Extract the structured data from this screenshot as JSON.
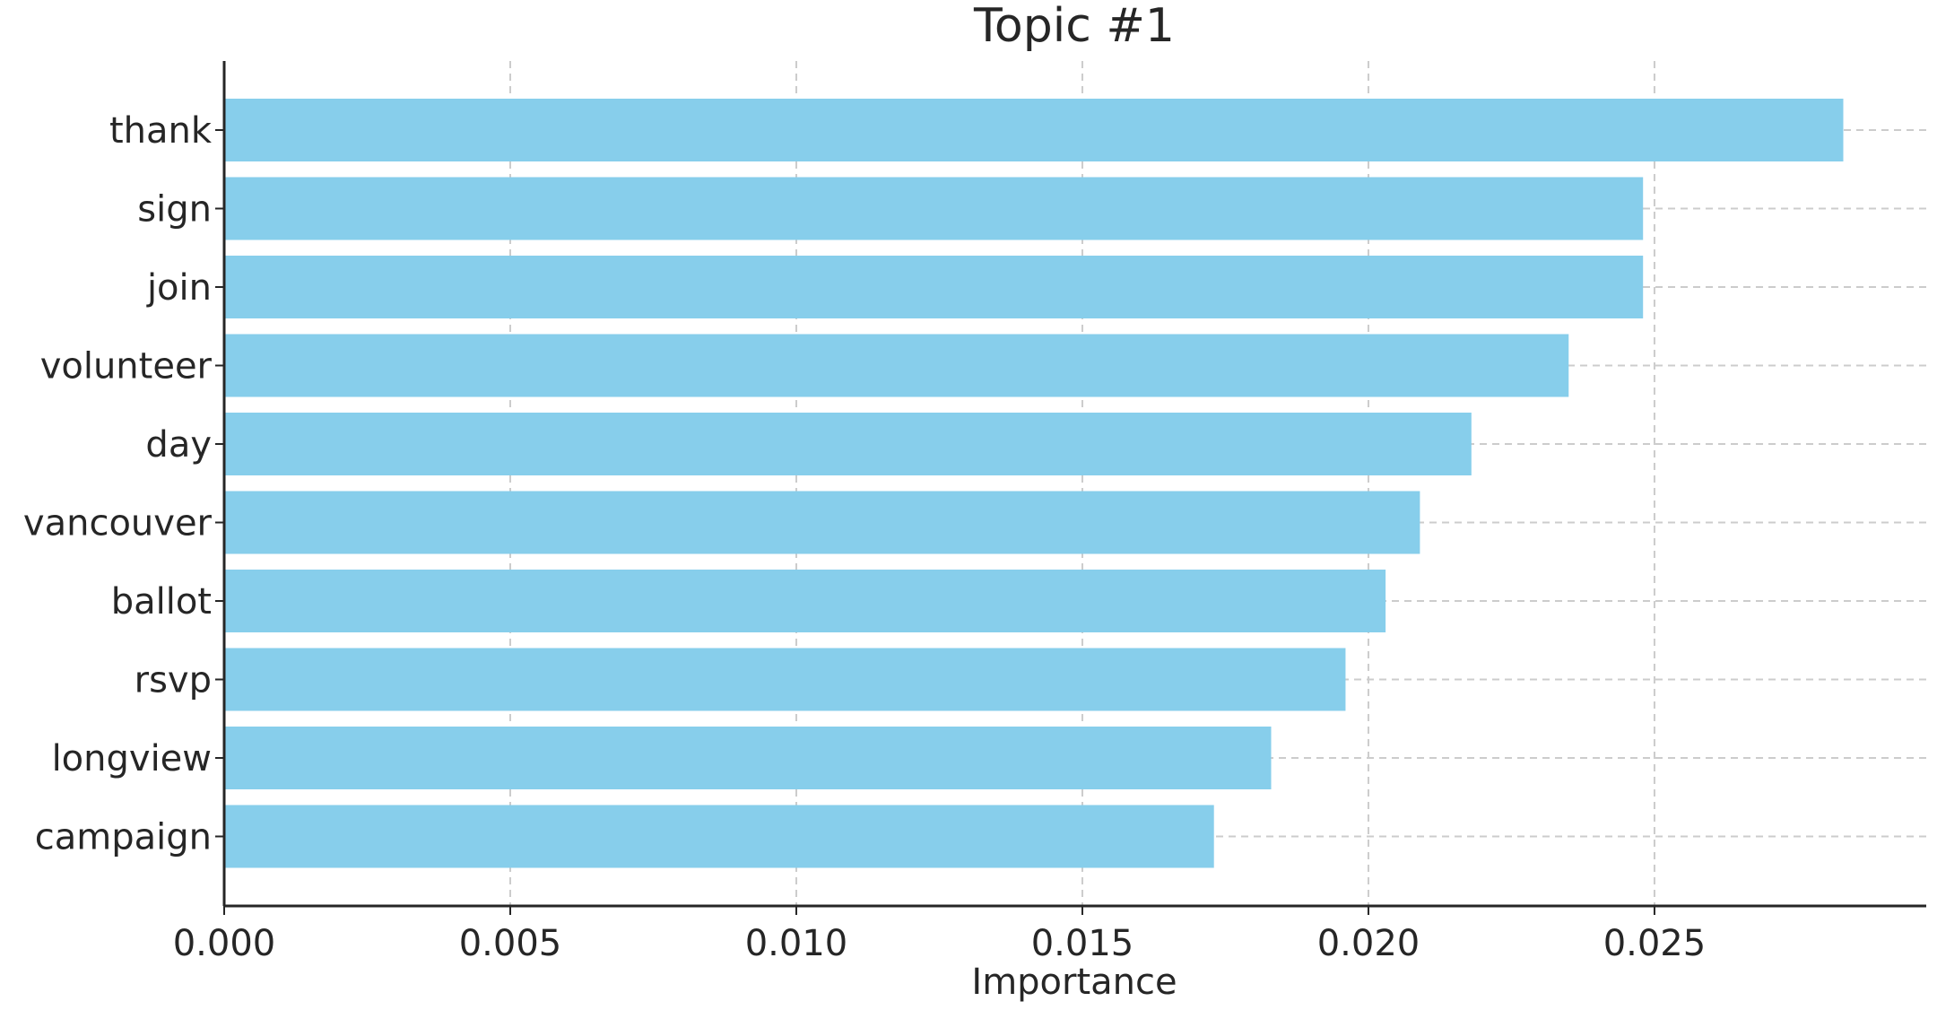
{
  "chart_data": {
    "type": "bar",
    "orientation": "horizontal",
    "title": "Topic #1",
    "xlabel": "Importance",
    "ylabel": "",
    "categories": [
      "thank",
      "sign",
      "join",
      "volunteer",
      "day",
      "vancouver",
      "ballot",
      "rsvp",
      "longview",
      "campaign"
    ],
    "values": [
      0.0283,
      0.0248,
      0.0248,
      0.0235,
      0.0218,
      0.0209,
      0.0203,
      0.0196,
      0.0183,
      0.0173
    ],
    "xlim": [
      0,
      0.02975
    ],
    "xticks": [
      0.0,
      0.005,
      0.01,
      0.015,
      0.02,
      0.025
    ],
    "xtick_labels": [
      "0.000",
      "0.005",
      "0.010",
      "0.015",
      "0.020",
      "0.025"
    ],
    "grid": true,
    "bar_color": "#87ceeb",
    "axis_color": "#262626",
    "grid_color": "#cccccc"
  }
}
